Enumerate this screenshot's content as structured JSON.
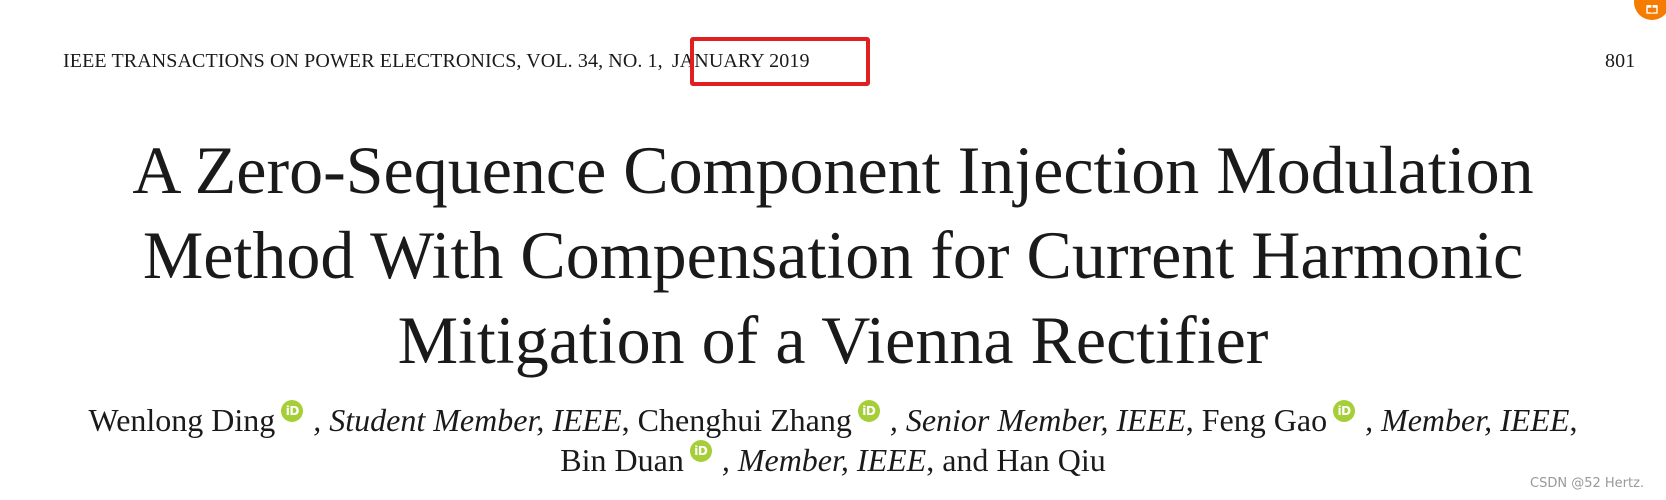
{
  "header": {
    "journal": "IEEE TRANSACTIONS ON POWER ELECTRONICS, VOL. 34, NO. 1,",
    "date": "JANUARY 2019",
    "page_number": "801"
  },
  "title_lines": [
    "A Zero-Sequence Component Injection Modulation",
    "Method With Compensation for Current Harmonic",
    "Mitigation of a Vienna Rectifier"
  ],
  "authors": [
    {
      "name": "Wenlong Ding",
      "role": ", Student Member, IEEE"
    },
    {
      "name": "Chenghui Zhang",
      "role": ", Senior Member, IEEE"
    },
    {
      "name": "Feng Gao",
      "role": ", Member, IEEE"
    },
    {
      "name": "Bin Duan",
      "role": ", Member, IEEE"
    },
    {
      "name": "Han Qiu"
    }
  ],
  "authors_text": {
    "comma": ",",
    "and": ", and"
  },
  "orcid_label": "iD",
  "watermark": "CSDN @52 Hertz.",
  "corner_badge_icon": "gift-icon",
  "colors": {
    "highlight": "#e02020",
    "orcid": "#a6ce39",
    "badge": "#f57c00"
  }
}
